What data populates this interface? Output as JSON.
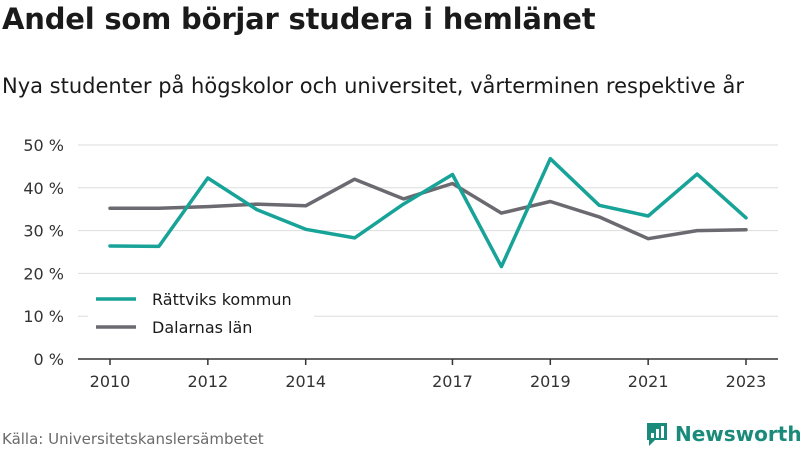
{
  "header": {
    "title": "Andel som börjar studera i hemlänet",
    "subtitle": "Nya studenter på högskolor och universitet, vårterminen respektive år"
  },
  "footer": {
    "source": "Källa: Universitetskanslersämbetet",
    "brand": "Newsworthy"
  },
  "colors": {
    "rattvik": "#17a398",
    "dalarna": "#6b6a70",
    "grid": "#dddddd",
    "brand": "#1a8a7a"
  },
  "chart_data": {
    "type": "line",
    "x": [
      2010,
      2011,
      2012,
      2013,
      2014,
      2015,
      2016,
      2017,
      2018,
      2019,
      2020,
      2021,
      2022,
      2023
    ],
    "xticks": [
      2010,
      2012,
      2014,
      2017,
      2019,
      2021,
      2023
    ],
    "xtick_labels": [
      "2010",
      "2012",
      "2014",
      "2017",
      "2019",
      "2021",
      "2023"
    ],
    "yticks": [
      0,
      10,
      20,
      30,
      40,
      50
    ],
    "ytick_labels": [
      "0 %",
      "10 %",
      "20 %",
      "30 %",
      "40 %",
      "50 %"
    ],
    "ylim": [
      0,
      50
    ],
    "xlim": [
      2010,
      2023
    ],
    "grid": true,
    "legend_position": "bottom-left",
    "series": [
      {
        "name": "Rättviks kommun",
        "color": "#17a398",
        "values": [
          26.4,
          26.3,
          42.3,
          34.9,
          30.3,
          28.3,
          36.2,
          43.1,
          21.6,
          46.8,
          35.9,
          33.4,
          43.2,
          33.0
        ]
      },
      {
        "name": "Dalarnas län",
        "color": "#6b6a70",
        "values": [
          35.2,
          35.2,
          35.6,
          36.2,
          35.8,
          42.0,
          37.4,
          41.0,
          34.1,
          36.8,
          33.2,
          28.1,
          30.0,
          30.2
        ]
      }
    ]
  }
}
